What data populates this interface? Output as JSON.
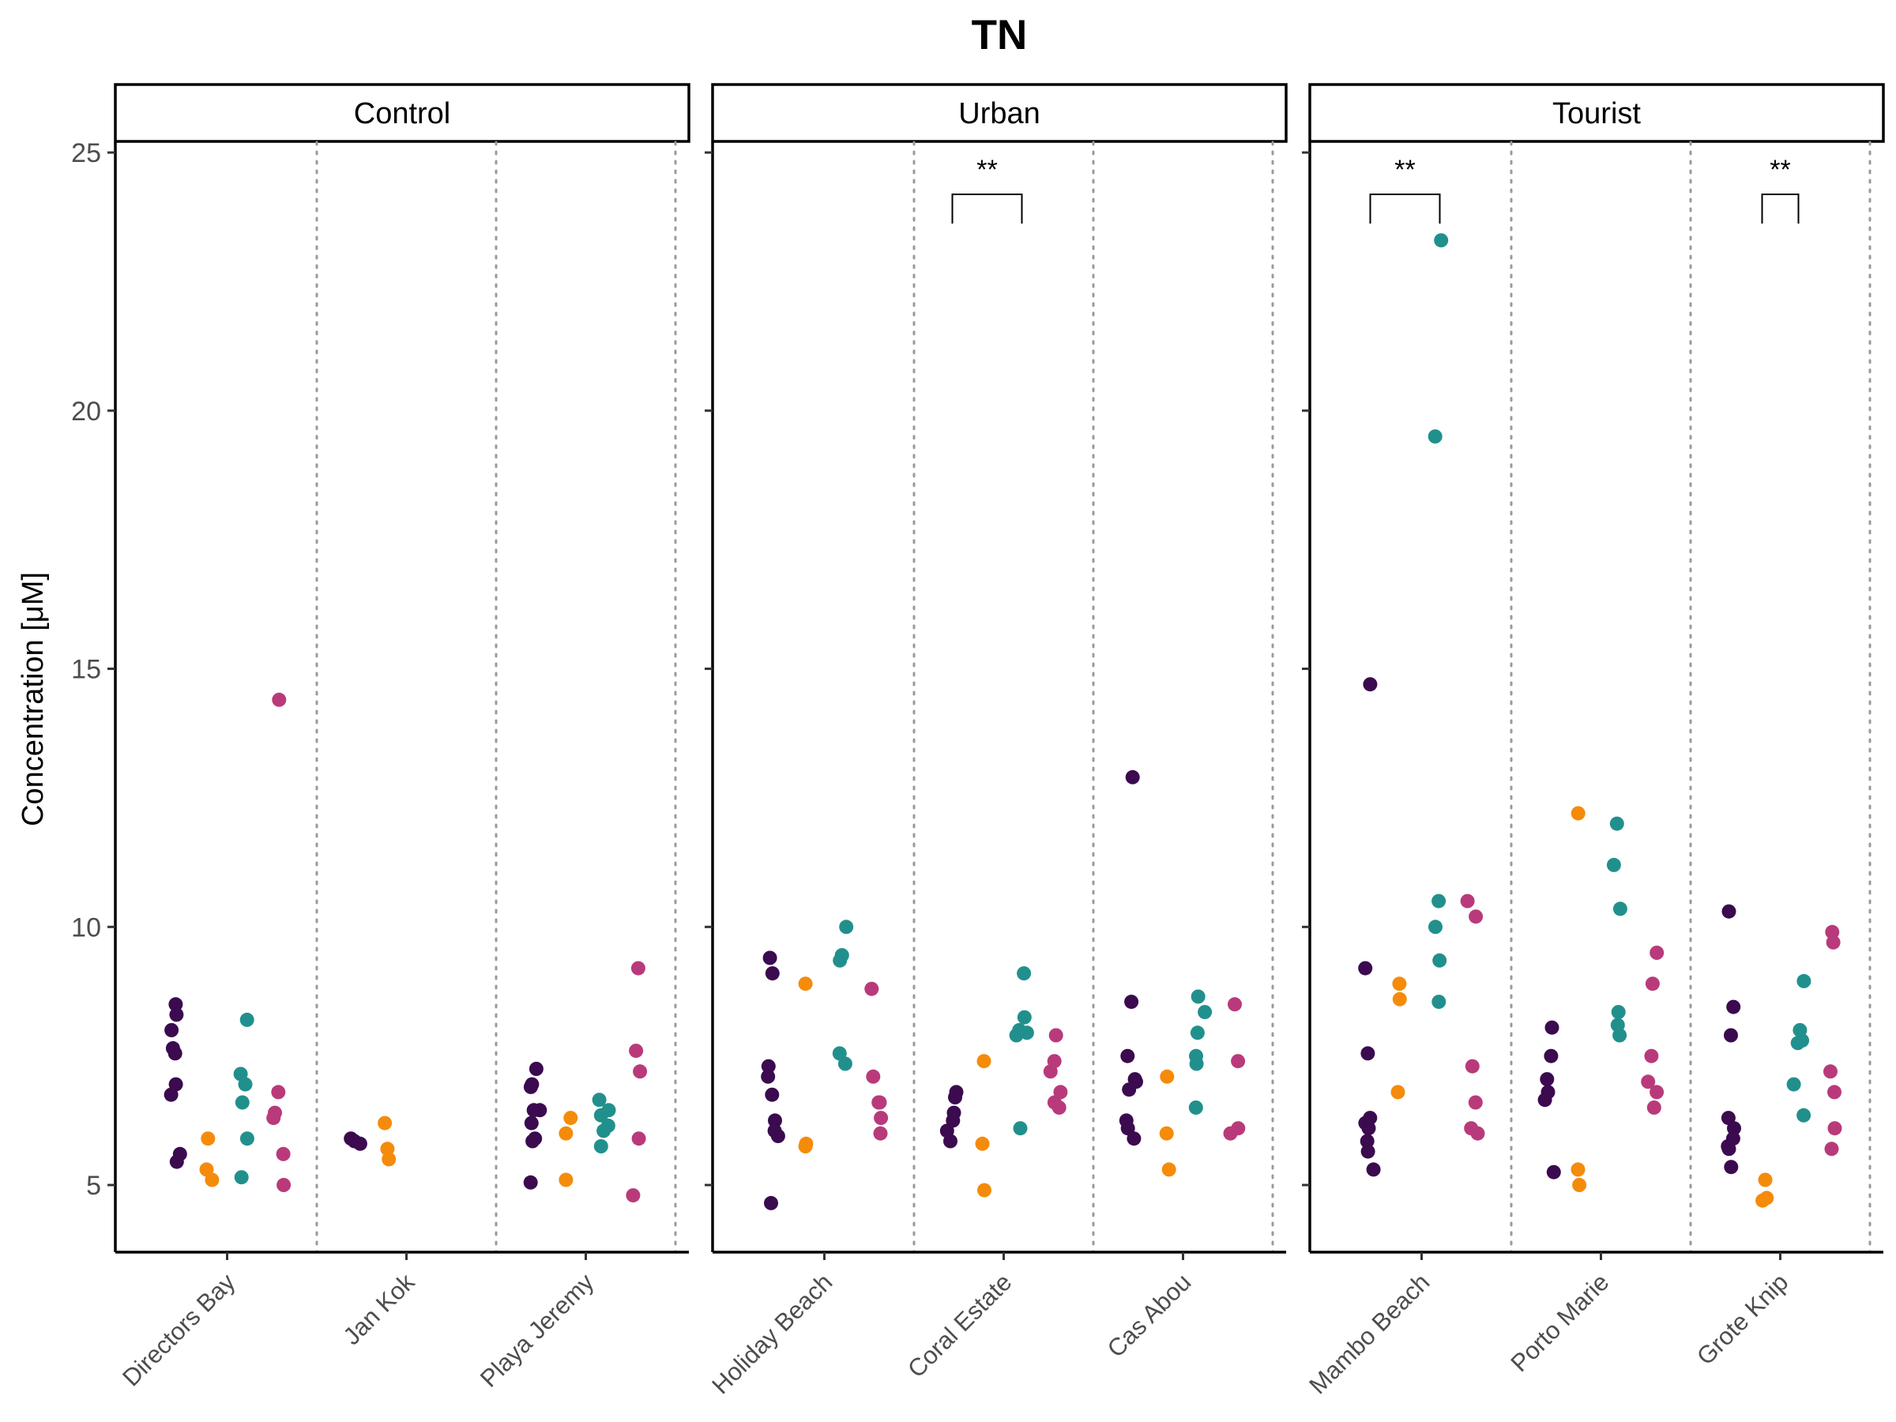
{
  "chart_data": {
    "type": "scatter",
    "title": "TN",
    "ylabel": "Concentration [μM]",
    "ylim": [
      3.7,
      25.2
    ],
    "yticks": [
      5,
      10,
      15,
      20,
      25
    ],
    "grid": false,
    "group_colors": [
      "#3b0a4f",
      "#f58b0a",
      "#21908d",
      "#b93a7a"
    ],
    "facets": [
      {
        "label": "Control",
        "sites": [
          {
            "name": "Directors Bay",
            "groups": [
              [
                8.5,
                8.3,
                8.0,
                7.65,
                7.55,
                6.95,
                6.75,
                5.6,
                5.45
              ],
              [
                5.9,
                5.3,
                5.1
              ],
              [
                8.2,
                7.15,
                6.95,
                6.6,
                5.9,
                5.15
              ],
              [
                14.4,
                6.8,
                6.4,
                6.3,
                5.6,
                5.0
              ]
            ]
          },
          {
            "name": "Jan Kok",
            "groups": [
              [
                5.9,
                5.85,
                5.8
              ],
              [
                6.2,
                5.7,
                5.5
              ],
              [],
              []
            ]
          },
          {
            "name": "Playa Jeremy",
            "groups": [
              [
                7.25,
                6.95,
                6.9,
                6.45,
                6.45,
                6.2,
                5.9,
                5.85,
                5.05
              ],
              [
                6.3,
                6.0,
                5.1
              ],
              [
                6.65,
                6.45,
                6.35,
                6.15,
                6.05,
                5.75
              ],
              [
                9.2,
                7.6,
                7.2,
                5.9,
                4.8
              ]
            ]
          }
        ],
        "brackets": []
      },
      {
        "label": "Urban",
        "sites": [
          {
            "name": "Holiday Beach",
            "groups": [
              [
                9.4,
                9.1,
                7.3,
                7.1,
                6.75,
                6.25,
                6.05,
                5.95,
                4.65
              ],
              [
                8.9,
                5.8,
                5.75
              ],
              [
                10.0,
                9.45,
                9.45,
                9.35,
                7.55,
                7.35
              ],
              [
                8.8,
                7.1,
                6.6,
                6.6,
                6.3,
                6.0
              ]
            ]
          },
          {
            "name": "Coral Estate",
            "groups": [
              [
                6.8,
                6.7,
                6.4,
                6.25,
                6.05,
                5.85
              ],
              [
                7.4,
                5.8,
                4.9
              ],
              [
                9.1,
                8.25,
                8.0,
                7.95,
                7.9,
                6.1
              ],
              [
                7.9,
                7.4,
                7.2,
                6.8,
                6.6,
                6.5
              ]
            ]
          },
          {
            "name": "Cas Abou",
            "groups": [
              [
                12.9,
                8.55,
                7.5,
                7.05,
                7.0,
                6.85,
                6.25,
                6.1,
                5.9
              ],
              [
                7.1,
                6.0,
                5.3
              ],
              [
                8.65,
                8.35,
                7.95,
                7.5,
                7.35,
                6.5
              ],
              [
                8.5,
                7.4,
                6.1,
                6.0
              ]
            ]
          }
        ],
        "brackets": [
          {
            "site": "Coral Estate",
            "from": "#3b0a4f",
            "to": "#21908d",
            "label": "**"
          }
        ]
      },
      {
        "label": "Tourist",
        "sites": [
          {
            "name": "Mambo Beach",
            "groups": [
              [
                14.7,
                9.2,
                7.55,
                6.3,
                6.2,
                6.1,
                5.85,
                5.65,
                5.3
              ],
              [
                8.9,
                8.6,
                6.8
              ],
              [
                23.3,
                19.5,
                10.5,
                10.0,
                9.35,
                8.55
              ],
              [
                10.5,
                10.2,
                7.3,
                6.6,
                6.1,
                6.0
              ]
            ]
          },
          {
            "name": "Porto Marie",
            "groups": [
              [
                8.05,
                7.5,
                7.05,
                6.8,
                6.65,
                5.25
              ],
              [
                12.2,
                5.3,
                5.0
              ],
              [
                12.0,
                11.2,
                10.35,
                8.35,
                8.1,
                7.9
              ],
              [
                9.5,
                8.9,
                7.5,
                7.0,
                6.8,
                6.5
              ]
            ]
          },
          {
            "name": "Grote Knip",
            "groups": [
              [
                10.3,
                8.45,
                7.9,
                6.3,
                6.1,
                5.9,
                5.75,
                5.7,
                5.35
              ],
              [
                5.1,
                4.75,
                4.7
              ],
              [
                8.95,
                8.0,
                7.8,
                7.75,
                6.95,
                6.35
              ],
              [
                9.9,
                9.7,
                7.2,
                6.8,
                6.1,
                5.7
              ]
            ]
          }
        ],
        "brackets": [
          {
            "site": "Mambo Beach",
            "from": "#3b0a4f",
            "to": "#21908d",
            "label": "**"
          },
          {
            "site": "Grote Knip",
            "from": "#f58b0a",
            "to": "#21908d",
            "label": "**"
          }
        ]
      }
    ]
  }
}
